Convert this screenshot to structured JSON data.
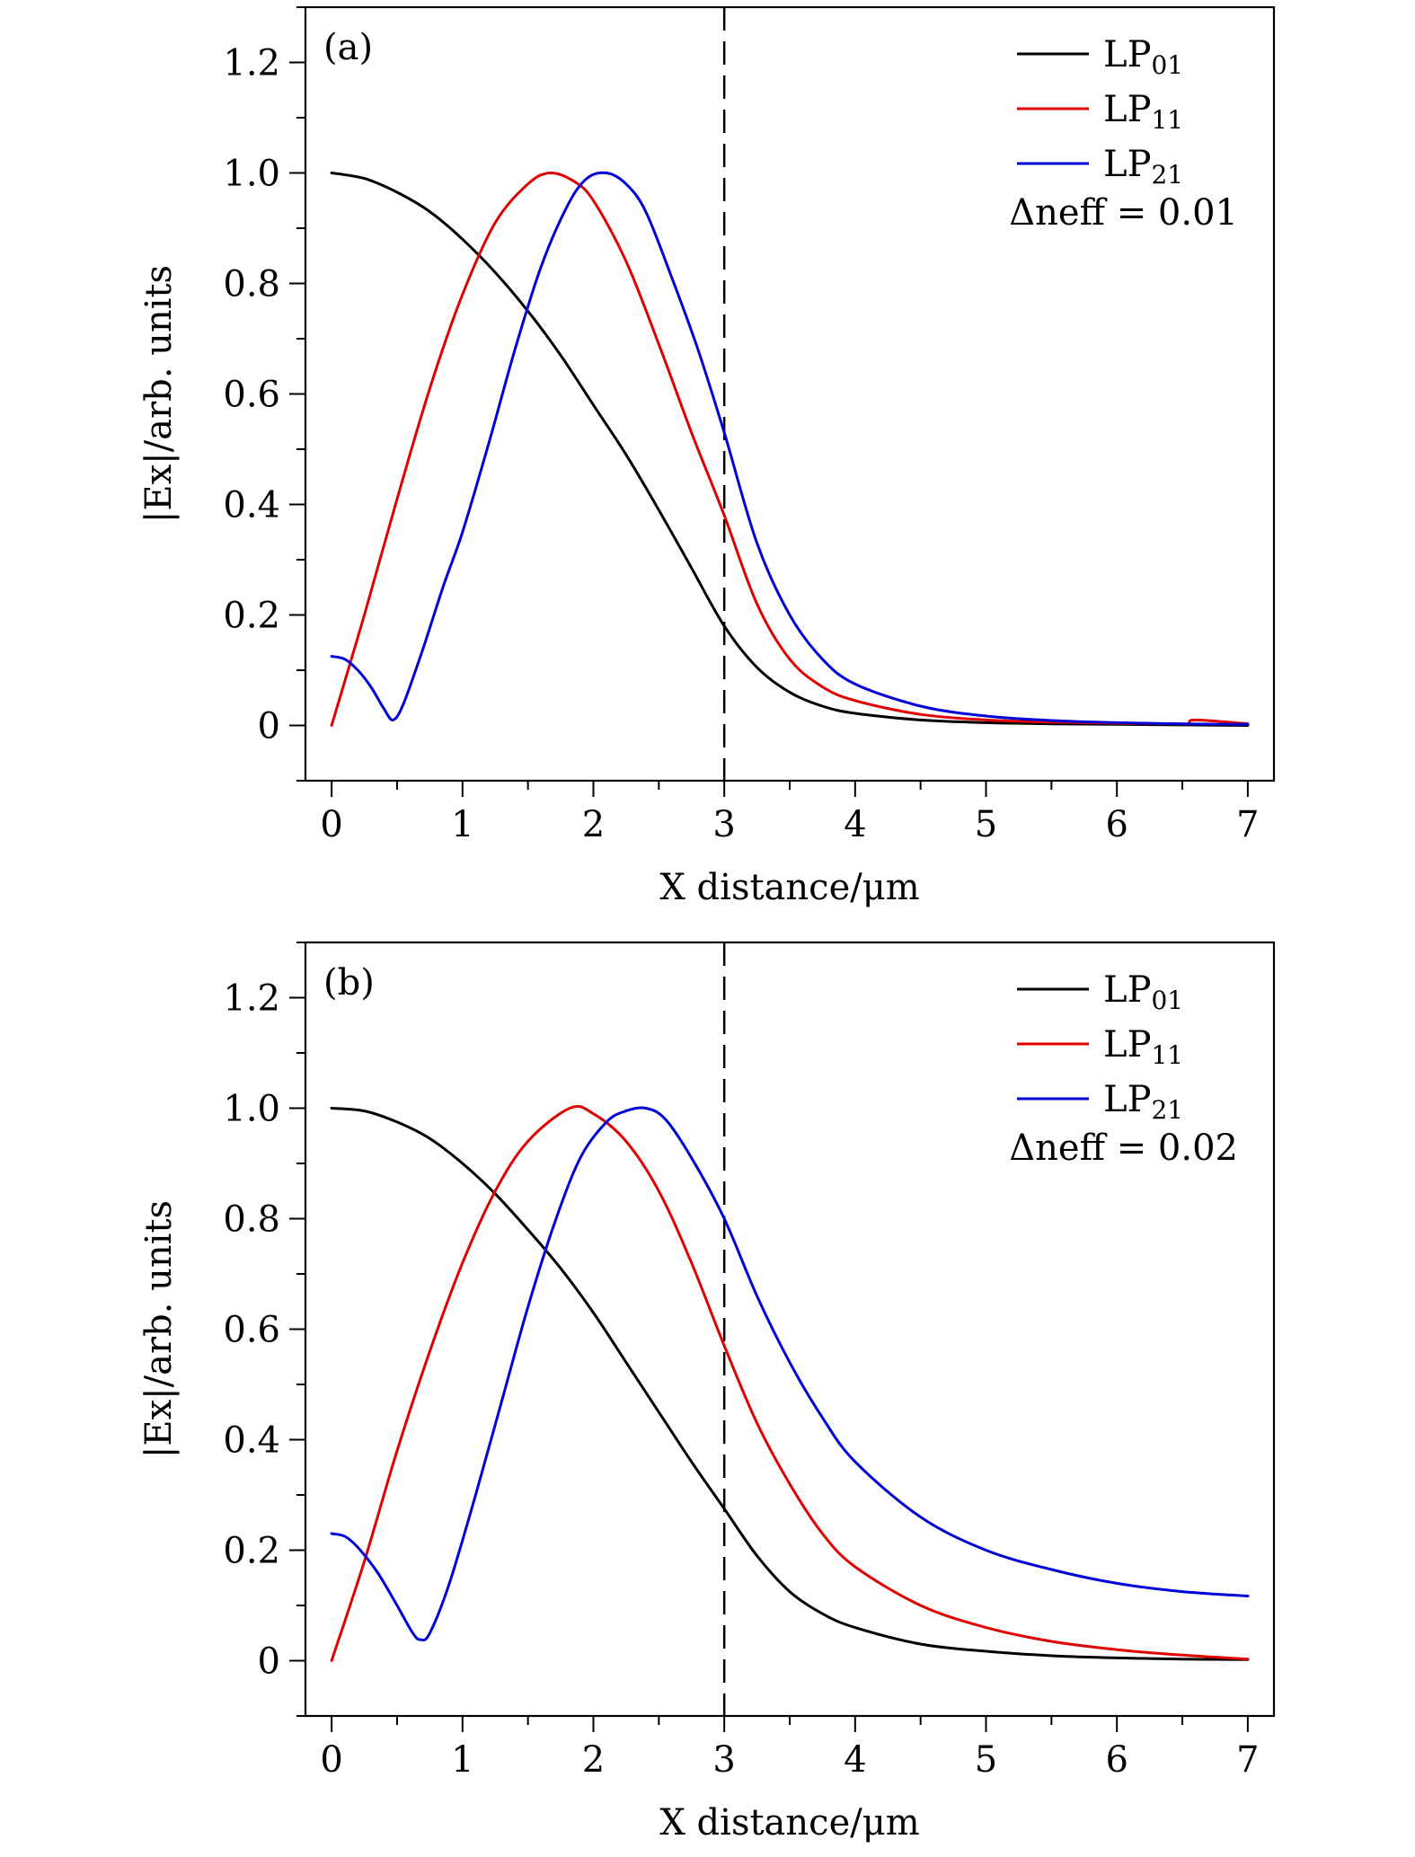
{
  "chart_data": [
    {
      "type": "line",
      "panel_label": "(a)",
      "xlabel": "X distance/μm",
      "ylabel": "|Ex|/arb. units",
      "xlim": [
        -0.2,
        7.2
      ],
      "ylim": [
        -0.1,
        1.3
      ],
      "xticks": [
        0,
        1,
        2,
        3,
        4,
        5,
        6,
        7
      ],
      "xtick_labels": [
        "0",
        "1",
        "2",
        "3",
        "4",
        "5",
        "6",
        "7"
      ],
      "yticks": [
        0,
        0.2,
        0.4,
        0.6,
        0.8,
        1.0,
        1.2
      ],
      "ytick_labels": [
        "0",
        "0.2",
        "0.4",
        "0.6",
        "0.8",
        "1.0",
        "1.2"
      ],
      "vertical_line": {
        "x": 3,
        "style": "dashed"
      },
      "annotation": "Δneff = 0.01",
      "legend_position": "top-right",
      "series": [
        {
          "name": "LP01",
          "name_base": "LP",
          "name_sub": "01",
          "color": "#000000",
          "x": [
            0,
            0.25,
            0.5,
            0.75,
            1.0,
            1.25,
            1.5,
            1.75,
            2.0,
            2.25,
            2.5,
            2.75,
            3.0,
            3.25,
            3.5,
            3.75,
            4.0,
            4.5,
            5.0,
            5.5,
            6.0,
            6.5,
            7.0
          ],
          "y": [
            1.0,
            0.99,
            0.965,
            0.93,
            0.88,
            0.82,
            0.75,
            0.67,
            0.58,
            0.49,
            0.39,
            0.285,
            0.18,
            0.105,
            0.06,
            0.035,
            0.022,
            0.01,
            0.005,
            0.003,
            0.002,
            0.001,
            0.0
          ]
        },
        {
          "name": "LP11",
          "name_base": "LP",
          "name_sub": "11",
          "color": "#e00000",
          "x": [
            0,
            0.25,
            0.5,
            0.75,
            1.0,
            1.25,
            1.5,
            1.67,
            1.85,
            2.0,
            2.25,
            2.5,
            2.75,
            3.0,
            3.25,
            3.5,
            3.75,
            4.0,
            4.5,
            5.0,
            5.5,
            6.0,
            6.5,
            6.55,
            6.6,
            7.0
          ],
          "y": [
            0.0,
            0.2,
            0.41,
            0.61,
            0.78,
            0.91,
            0.98,
            1.0,
            0.985,
            0.95,
            0.84,
            0.69,
            0.53,
            0.38,
            0.22,
            0.12,
            0.07,
            0.045,
            0.02,
            0.01,
            0.006,
            0.004,
            0.003,
            0.003,
            0.01,
            0.003
          ]
        },
        {
          "name": "LP21",
          "name_base": "LP",
          "name_sub": "21",
          "color": "#0000d8",
          "x": [
            0,
            0.1,
            0.2,
            0.3,
            0.4,
            0.47,
            0.55,
            0.7,
            0.85,
            1.0,
            1.2,
            1.4,
            1.6,
            1.8,
            1.95,
            2.1,
            2.25,
            2.4,
            2.6,
            2.8,
            3.0,
            3.25,
            3.5,
            3.75,
            4.0,
            4.5,
            5.0,
            5.5,
            6.0,
            6.5,
            7.0
          ],
          "y": [
            0.125,
            0.12,
            0.1,
            0.07,
            0.03,
            0.01,
            0.04,
            0.14,
            0.25,
            0.35,
            0.51,
            0.68,
            0.83,
            0.94,
            0.99,
            1.0,
            0.98,
            0.93,
            0.81,
            0.68,
            0.53,
            0.33,
            0.2,
            0.12,
            0.075,
            0.035,
            0.017,
            0.009,
            0.005,
            0.003,
            0.002
          ]
        }
      ]
    },
    {
      "type": "line",
      "panel_label": "(b)",
      "xlabel": "X distance/μm",
      "ylabel": "|Ex|/arb. units",
      "xlim": [
        -0.2,
        7.2
      ],
      "ylim": [
        -0.1,
        1.3
      ],
      "xticks": [
        0,
        1,
        2,
        3,
        4,
        5,
        6,
        7
      ],
      "xtick_labels": [
        "0",
        "1",
        "2",
        "3",
        "4",
        "5",
        "6",
        "7"
      ],
      "yticks": [
        0,
        0.2,
        0.4,
        0.6,
        0.8,
        1.0,
        1.2
      ],
      "ytick_labels": [
        "0",
        "0.2",
        "0.4",
        "0.6",
        "0.8",
        "1.0",
        "1.2"
      ],
      "vertical_line": {
        "x": 3,
        "style": "dashed"
      },
      "annotation": "Δneff = 0.02",
      "legend_position": "top-right",
      "series": [
        {
          "name": "LP01",
          "name_base": "LP",
          "name_sub": "01",
          "color": "#000000",
          "x": [
            0,
            0.25,
            0.5,
            0.75,
            1.0,
            1.25,
            1.5,
            1.75,
            2.0,
            2.25,
            2.5,
            2.75,
            3.0,
            3.25,
            3.5,
            3.75,
            4.0,
            4.5,
            5.0,
            5.5,
            6.0,
            6.5,
            7.0
          ],
          "y": [
            1.0,
            0.995,
            0.975,
            0.945,
            0.9,
            0.845,
            0.78,
            0.71,
            0.63,
            0.54,
            0.45,
            0.36,
            0.275,
            0.19,
            0.125,
            0.085,
            0.06,
            0.03,
            0.017,
            0.009,
            0.005,
            0.003,
            0.002
          ]
        },
        {
          "name": "LP11",
          "name_base": "LP",
          "name_sub": "11",
          "color": "#e00000",
          "x": [
            0,
            0.25,
            0.5,
            0.75,
            1.0,
            1.25,
            1.5,
            1.82,
            2.0,
            2.25,
            2.5,
            2.75,
            3.0,
            3.25,
            3.5,
            3.75,
            4.0,
            4.5,
            5.0,
            5.5,
            6.0,
            6.5,
            7.0
          ],
          "y": [
            0.0,
            0.18,
            0.38,
            0.56,
            0.72,
            0.85,
            0.94,
            1.0,
            0.99,
            0.94,
            0.85,
            0.72,
            0.57,
            0.43,
            0.32,
            0.23,
            0.17,
            0.1,
            0.06,
            0.035,
            0.02,
            0.01,
            0.003
          ]
        },
        {
          "name": "LP21",
          "name_base": "LP",
          "name_sub": "21",
          "color": "#0000d8",
          "x": [
            0,
            0.1,
            0.2,
            0.35,
            0.5,
            0.62,
            0.68,
            0.75,
            0.9,
            1.1,
            1.3,
            1.5,
            1.7,
            1.9,
            2.1,
            2.25,
            2.4,
            2.55,
            2.75,
            3.0,
            3.25,
            3.5,
            3.75,
            4.0,
            4.5,
            5.0,
            5.5,
            6.0,
            6.5,
            7.0
          ],
          "y": [
            0.23,
            0.225,
            0.205,
            0.16,
            0.1,
            0.05,
            0.038,
            0.05,
            0.14,
            0.3,
            0.47,
            0.64,
            0.79,
            0.91,
            0.975,
            0.995,
            1.0,
            0.98,
            0.91,
            0.8,
            0.66,
            0.54,
            0.44,
            0.36,
            0.26,
            0.2,
            0.165,
            0.14,
            0.125,
            0.117
          ]
        }
      ]
    }
  ]
}
